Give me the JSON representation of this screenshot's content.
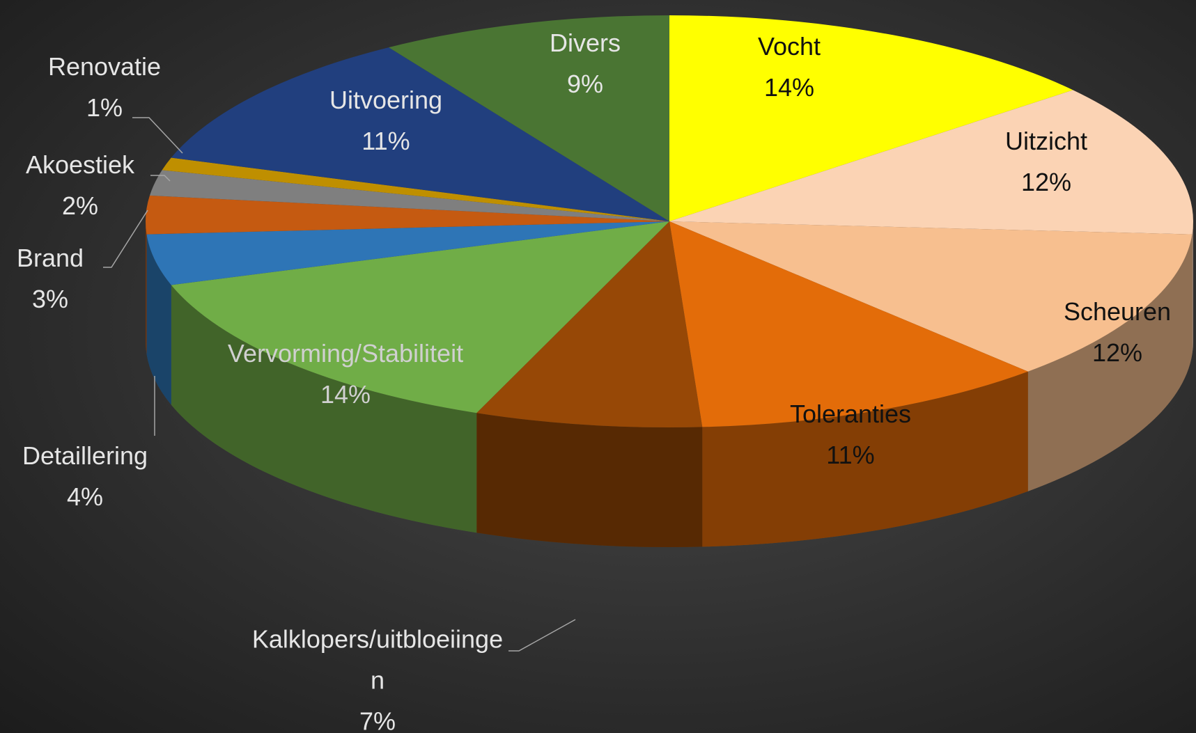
{
  "chart_data": {
    "type": "pie3d",
    "categories": [
      "Vocht",
      "Uitzicht",
      "Scheuren",
      "Toleranties",
      "Kalklopers/uitbloeiingen",
      "Vervorming/Stabiliteit",
      "Detaillering",
      "Brand",
      "Akoestiek",
      "Renovatie",
      "Uitvoering",
      "Divers"
    ],
    "values": [
      14,
      12,
      12,
      11,
      7,
      14,
      4,
      3,
      2,
      1,
      11,
      9
    ],
    "value_labels": [
      "14%",
      "12%",
      "12%",
      "11%",
      "7%",
      "14%",
      "4%",
      "3%",
      "2%",
      "1%",
      "11%",
      "9%"
    ],
    "colors": [
      "#ffff00",
      "#fbd3b4",
      "#f7bf8f",
      "#e36c09",
      "#974806",
      "#70ad47",
      "#2e75b6",
      "#c55a11",
      "#7f7f7f",
      "#bf8f00",
      "#213f7e",
      "#4a7533"
    ]
  }
}
